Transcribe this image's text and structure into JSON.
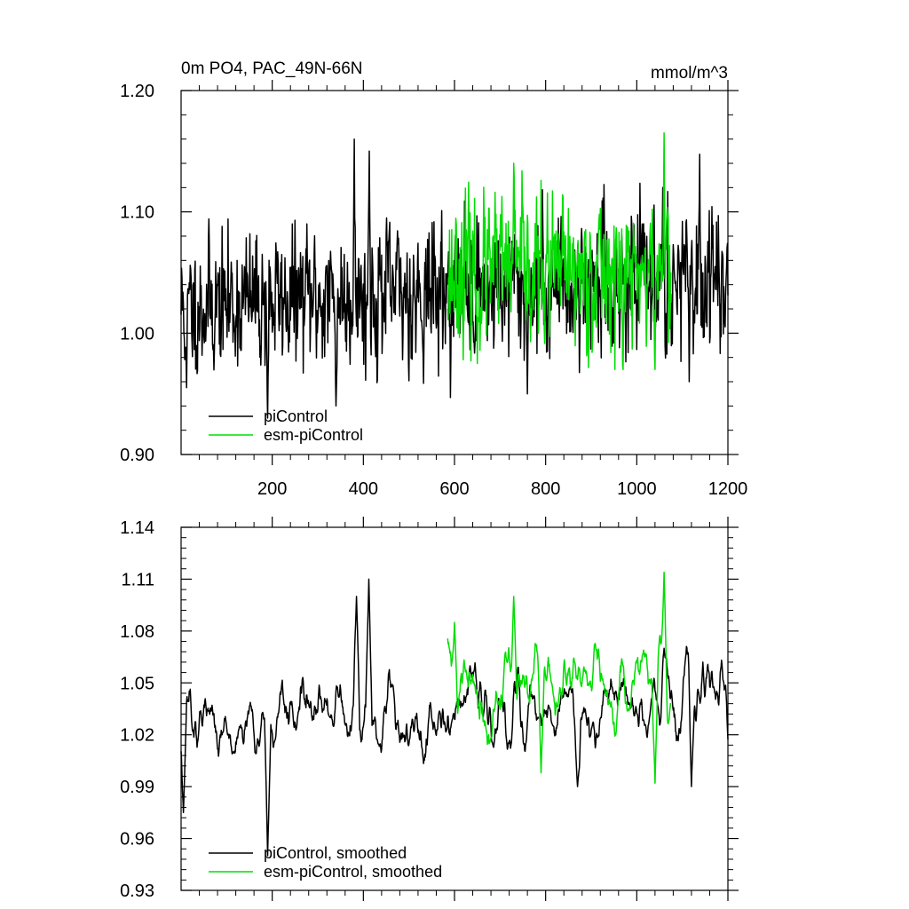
{
  "chart_data": [
    {
      "type": "line",
      "title_left": "0m PO4, PAC_49N-66N",
      "title_right": "mmol/m^3",
      "xlabel": "",
      "ylabel": "",
      "xlim": [
        0,
        1200
      ],
      "ylim": [
        0.9,
        1.2
      ],
      "xticks": [
        200,
        400,
        600,
        800,
        1000,
        1200
      ],
      "xtick_labels": [
        "200",
        "400",
        "600",
        "800",
        "1000",
        "1200"
      ],
      "yticks": [
        0.9,
        1.0,
        1.1,
        1.2
      ],
      "ytick_labels": [
        "0.90",
        "1.00",
        "1.10",
        "1.20"
      ],
      "legend_position": "bottom-left",
      "series": [
        {
          "name": "piControl",
          "color": "#000000",
          "start": 0,
          "end": 1200,
          "mean": 1.035,
          "trend": 0.025,
          "amp": 0.026,
          "seed": 11,
          "peaks": [
            [
              380,
              1.16
            ],
            [
              413,
              1.15
            ],
            [
              1057,
              1.12
            ],
            [
              190,
              0.93
            ],
            [
              340,
              0.94
            ],
            [
              760,
              0.95
            ],
            [
              1115,
              0.96
            ],
            [
              12,
              0.955
            ]
          ]
        },
        {
          "name": "esm-piControl",
          "color": "#00dd00",
          "start": 585,
          "end": 1075,
          "mean": 1.05,
          "trend": 0.0,
          "amp": 0.027,
          "seed": 23,
          "peaks": [
            [
              730,
              1.14
            ],
            [
              1060,
              1.165
            ],
            [
              650,
              0.975
            ],
            [
              1040,
              0.97
            ],
            [
              970,
              0.97
            ]
          ]
        }
      ]
    },
    {
      "type": "line",
      "title_left": "",
      "title_right": "",
      "xlabel": "",
      "ylabel": "",
      "xlim": [
        0,
        1200
      ],
      "ylim": [
        0.93,
        1.14
      ],
      "xticks": [
        200,
        400,
        600,
        800,
        1000,
        1200
      ],
      "xtick_labels": [
        "",
        "",
        "",
        "",
        "",
        ""
      ],
      "yticks": [
        0.93,
        0.96,
        0.99,
        1.02,
        1.05,
        1.08,
        1.11,
        1.14
      ],
      "ytick_labels": [
        "0.93",
        "0.96",
        "0.99",
        "1.02",
        "1.05",
        "1.08",
        "1.11",
        "1.14"
      ],
      "legend_position": "bottom-left",
      "series": [
        {
          "name": "piControl, smoothed",
          "color": "#000000",
          "start": 0,
          "end": 1200,
          "mean": 1.035,
          "trend": 0.018,
          "amp": 0.016,
          "seed": 37,
          "peaks": [
            [
              412,
              1.11
            ],
            [
              385,
              1.1
            ],
            [
              1060,
              1.07
            ],
            [
              190,
              0.95
            ],
            [
              5,
              0.975
            ],
            [
              870,
              0.99
            ],
            [
              1120,
              0.99
            ]
          ]
        },
        {
          "name": "esm-piControl, smoothed",
          "color": "#00dd00",
          "start": 585,
          "end": 1075,
          "mean": 1.05,
          "trend": 0.0,
          "amp": 0.017,
          "seed": 41,
          "peaks": [
            [
              730,
              1.1
            ],
            [
              1060,
              1.114
            ],
            [
              1040,
              0.992
            ],
            [
              790,
              0.998
            ],
            [
              600,
              1.085
            ]
          ]
        }
      ]
    }
  ]
}
